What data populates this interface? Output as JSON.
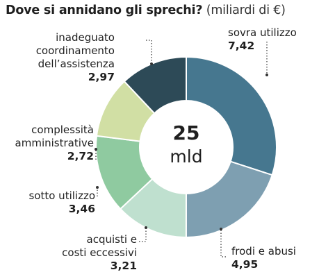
{
  "header": {
    "title_bold": "Dove si annidano gli sprechi?",
    "title_unit": "(miliardi di €)"
  },
  "center": {
    "value": "25",
    "unit": "mld"
  },
  "chart_data": {
    "type": "pie",
    "title": "Dove si annidano gli sprechi? (miliardi di €)",
    "total": 25,
    "total_unit": "mld",
    "categories": [
      "sovra utilizzo",
      "frodi e abusi",
      "acquisti e costi eccessivi",
      "sotto utilizzo",
      "complessità amministrative",
      "inadeguato coordinamento dell'assistenza"
    ],
    "values": [
      7.42,
      4.95,
      3.21,
      3.46,
      2.72,
      2.97
    ],
    "value_labels": [
      "7,42",
      "4,95",
      "3,21",
      "3,46",
      "2,72",
      "2,97"
    ],
    "colors": [
      "#46778f",
      "#7e9fb1",
      "#bfe0cf",
      "#8fcaa0",
      "#d1dfa4",
      "#2d4a57"
    ]
  },
  "labels": {
    "sovra": {
      "line1": "sovra utilizzo",
      "value": "7,42"
    },
    "frodi": {
      "line1": "frodi e abusi",
      "value": "4,95"
    },
    "acquisti": {
      "line1": "acquisti e",
      "line2": "costi eccessivi",
      "value": "3,21"
    },
    "sotto": {
      "line1": "sotto utilizzo",
      "value": "3,46"
    },
    "complessita": {
      "line1": "complessità",
      "line2": "amministrative",
      "value": "2,72"
    },
    "inadeguato": {
      "line1": "inadeguato",
      "line2": "coordinamento",
      "line3": "dell’assistenza",
      "value": "2,97"
    }
  }
}
